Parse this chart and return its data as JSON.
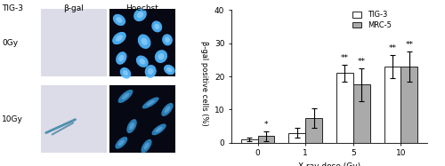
{
  "categories": [
    0,
    1,
    5,
    10
  ],
  "tig3_values": [
    1.0,
    3.0,
    21.0,
    23.0
  ],
  "mrc5_values": [
    2.0,
    7.5,
    17.5,
    23.0
  ],
  "tig3_errors": [
    0.5,
    1.5,
    2.5,
    3.5
  ],
  "mrc5_errors": [
    1.5,
    3.0,
    5.0,
    4.5
  ],
  "tig3_color": "#ffffff",
  "mrc5_color": "#aaaaaa",
  "bar_edge_color": "#222222",
  "ylabel": "β-gal positive cells (%)",
  "xlabel": "X-ray dose (Gy)",
  "ylim": [
    0,
    40
  ],
  "yticks": [
    0,
    10,
    20,
    30,
    40
  ],
  "bar_width": 0.35,
  "font_size": 6.5,
  "tick_font_size": 6.5,
  "panel_labels": {
    "tig3": "TIG-3",
    "beta_gal": "β-gal",
    "hoechst": "Hoechst",
    "0gy": "0Gy",
    "10gy": "10Gy"
  },
  "img_bg_betagal": [
    220,
    225,
    240
  ],
  "img_bg_hoechst": [
    5,
    8,
    25
  ],
  "stain_color": [
    80,
    130,
    180
  ],
  "nucleus_color_bright": [
    100,
    180,
    255
  ],
  "nucleus_color_dim": [
    40,
    80,
    160
  ]
}
